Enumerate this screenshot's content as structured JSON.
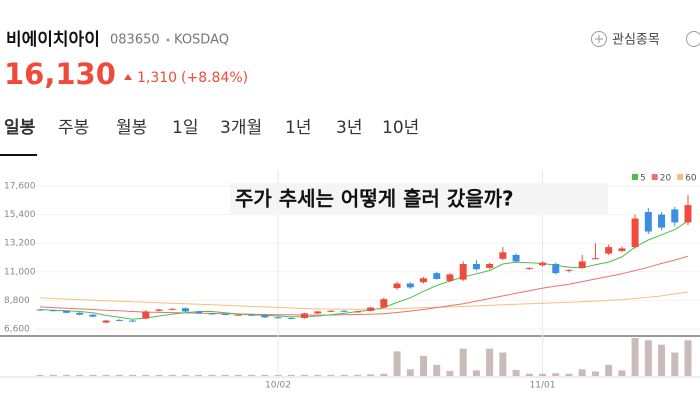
{
  "header": {
    "name": "비에이치아이",
    "code": "083650",
    "market": "KOSDAQ",
    "watch": "관심종목"
  },
  "price": {
    "value": "16,130",
    "change": "1,310",
    "change_pct": "(+8.84%)"
  },
  "tabs": [
    "일봉",
    "주봉",
    "월봉",
    "1일",
    "3개월",
    "1년",
    "3년",
    "10년"
  ],
  "chart_data": {
    "type": "candlestick",
    "annotation": "주가 추세는 어떻게 흘러 갔을까?",
    "categories": [
      null,
      null,
      null,
      null,
      null,
      null,
      null,
      null,
      null,
      null,
      null,
      null,
      null,
      null,
      null,
      null,
      null,
      null,
      "10/02",
      null,
      null,
      null,
      null,
      null,
      null,
      null,
      null,
      null,
      null,
      null,
      null,
      null,
      null,
      null,
      null,
      null,
      null,
      null,
      "11/01",
      null,
      null,
      null,
      null,
      null,
      null,
      null,
      null,
      null,
      null,
      null
    ],
    "open": [
      8100,
      8050,
      8000,
      7850,
      7700,
      7100,
      7300,
      7250,
      7400,
      8000,
      8100,
      8200,
      7950,
      7800,
      7750,
      7700,
      7700,
      7650,
      7500,
      7450,
      7450,
      7800,
      7950,
      8000,
      7950,
      8000,
      8250,
      9750,
      10100,
      10200,
      10900,
      10300,
      10400,
      11600,
      11300,
      12000,
      12300,
      11250,
      11500,
      11600,
      11100,
      11300,
      12000,
      12400,
      12600,
      12900,
      15600,
      15400,
      15800,
      14800
    ],
    "high": [
      8150,
      8100,
      8050,
      7900,
      7750,
      7300,
      7350,
      7300,
      8050,
      8150,
      8200,
      8250,
      8000,
      7850,
      7800,
      7750,
      7750,
      7700,
      7550,
      7500,
      7850,
      8000,
      8050,
      8050,
      8000,
      8300,
      9000,
      10250,
      10200,
      10600,
      11000,
      10900,
      11800,
      11900,
      11700,
      12900,
      12400,
      11350,
      11800,
      11700,
      11200,
      12300,
      13200,
      13100,
      12950,
      15400,
      15900,
      15600,
      16000,
      16900
    ],
    "low": [
      8000,
      7950,
      7800,
      7650,
      7500,
      7050,
      7200,
      7150,
      7350,
      7950,
      8050,
      7900,
      7750,
      7700,
      7650,
      7650,
      7600,
      7450,
      7400,
      7350,
      7400,
      7750,
      7900,
      7900,
      7900,
      7950,
      8200,
      9600,
      9700,
      10100,
      10400,
      10200,
      10300,
      11100,
      11200,
      11900,
      11700,
      11150,
      11400,
      10800,
      10950,
      11250,
      11950,
      12300,
      12500,
      12800,
      13900,
      14200,
      14500,
      14600
    ],
    "close": [
      8050,
      8000,
      7850,
      7700,
      7550,
      7250,
      7250,
      7200,
      7950,
      8100,
      8150,
      7950,
      7800,
      7750,
      7700,
      7700,
      7650,
      7500,
      7450,
      7400,
      7800,
      7950,
      8000,
      7950,
      7950,
      8250,
      8900,
      10100,
      9800,
      10500,
      10450,
      10800,
      11600,
      11200,
      11600,
      12500,
      11800,
      11300,
      11700,
      10900,
      11150,
      11800,
      12050,
      12900,
      12800,
      15100,
      14100,
      14400,
      14800,
      16130
    ],
    "volume": [
      20,
      20,
      20,
      20,
      20,
      20,
      20,
      20,
      20,
      20,
      20,
      20,
      20,
      20,
      20,
      20,
      20,
      20,
      20,
      20,
      20,
      20,
      20,
      20,
      20,
      30,
      40,
      440,
      120,
      360,
      200,
      90,
      490,
      100,
      490,
      420,
      110,
      40,
      40,
      50,
      40,
      120,
      80,
      200,
      100,
      680,
      640,
      560,
      420,
      640
    ],
    "up_color": "#f04a3c",
    "down_color": "#3b8fe0",
    "volume_color": "#c9bbb7",
    "series": [
      {
        "name": "5",
        "color": "#4cc04c",
        "values": [
          8100,
          8050,
          8000,
          7950,
          7850,
          7650,
          7500,
          7350,
          7450,
          7600,
          7750,
          7850,
          7950,
          7950,
          7850,
          7750,
          7700,
          7650,
          7600,
          7550,
          7550,
          7600,
          7700,
          7800,
          7950,
          8050,
          8250,
          8650,
          9000,
          9500,
          9950,
          10300,
          10600,
          10850,
          11100,
          11600,
          11750,
          11700,
          11650,
          11500,
          11350,
          11300,
          11550,
          11750,
          12150,
          12900,
          13450,
          13850,
          14250,
          14900
        ]
      },
      {
        "name": "20",
        "color": "#f07070",
        "values": [
          8300,
          8250,
          8200,
          8150,
          8100,
          8050,
          8000,
          7950,
          7900,
          7880,
          7860,
          7840,
          7820,
          7800,
          7780,
          7760,
          7740,
          7720,
          7700,
          7690,
          7680,
          7670,
          7680,
          7700,
          7720,
          7740,
          7780,
          7870,
          7980,
          8100,
          8250,
          8400,
          8550,
          8750,
          8950,
          9150,
          9350,
          9550,
          9750,
          9900,
          10050,
          10250,
          10450,
          10650,
          10850,
          11100,
          11350,
          11650,
          11900,
          12200
        ]
      },
      {
        "name": "60",
        "color": "#f5c07a",
        "values": [
          9000,
          8950,
          8900,
          8860,
          8820,
          8780,
          8740,
          8700,
          8660,
          8620,
          8580,
          8540,
          8500,
          8460,
          8420,
          8380,
          8340,
          8300,
          8260,
          8220,
          8180,
          8150,
          8130,
          8120,
          8120,
          8130,
          8150,
          8180,
          8210,
          8240,
          8270,
          8300,
          8340,
          8380,
          8420,
          8460,
          8500,
          8540,
          8580,
          8620,
          8660,
          8700,
          8750,
          8800,
          8850,
          8950,
          9050,
          9150,
          9300,
          9450
        ]
      }
    ],
    "ylim": [
      6140,
      18830
    ],
    "yticks": [
      {
        "value": 6600,
        "label": "6,600"
      },
      {
        "value": 8800,
        "label": "8,800"
      },
      {
        "value": 11000,
        "label": "11,000"
      },
      {
        "value": 13200,
        "label": "13,200"
      },
      {
        "value": 15400,
        "label": "15,400"
      },
      {
        "value": 17600,
        "label": "17,600"
      }
    ],
    "grid": true
  }
}
